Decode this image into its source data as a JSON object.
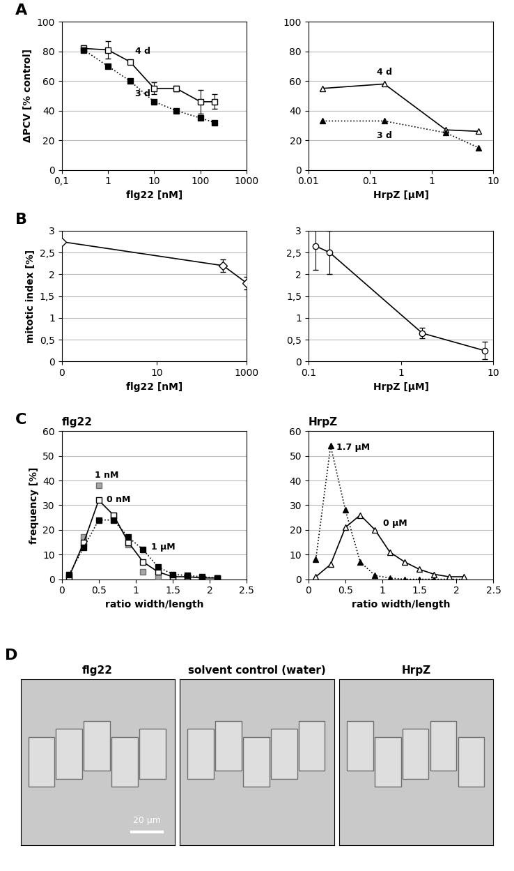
{
  "chart_data": [
    {
      "type": "line",
      "panel": "A",
      "xlabel": "flg22 [nM]",
      "ylabel": "ΔPCV [% control]",
      "log": "x",
      "grid": true,
      "xlim": [
        0.1,
        1000
      ],
      "xticks": [
        {
          "value": 0.1,
          "label": "0,1"
        },
        1,
        10,
        100,
        1000
      ],
      "ylim": [
        0,
        100
      ],
      "yticks": [
        0,
        20,
        40,
        60,
        80,
        100
      ],
      "series": [
        {
          "name": "4 d",
          "color": "#ffffff",
          "marker": "square",
          "line_style": "solid",
          "x": [
            0.3,
            1,
            3,
            10,
            30,
            100,
            200
          ],
          "values": [
            82,
            81,
            73,
            55,
            55,
            46,
            46
          ],
          "errors": [
            2,
            6,
            1,
            4,
            2,
            8,
            5
          ]
        },
        {
          "name": "3 d",
          "color": "#000000",
          "marker": "square",
          "line_style": "dotted",
          "x": [
            0.3,
            1,
            3,
            10,
            30,
            100,
            200
          ],
          "values": [
            81,
            70,
            60,
            46,
            40,
            35,
            32
          ]
        }
      ]
    },
    {
      "type": "line",
      "xlabel": "HrpZ [µM]",
      "log": "x",
      "grid": true,
      "xlim": [
        0.01,
        10
      ],
      "xticks": [
        0.01,
        0.1,
        1,
        10
      ],
      "ylim": [
        0,
        100
      ],
      "yticks": [
        0,
        20,
        40,
        60,
        80,
        100
      ],
      "series": [
        {
          "name": "4 d",
          "color": "#ffffff",
          "marker": "triangle",
          "line_style": "solid",
          "x": [
            0.017,
            0.17,
            1.7,
            5.7
          ],
          "values": [
            55,
            58,
            27,
            26
          ]
        },
        {
          "name": "3 d",
          "color": "#000000",
          "marker": "triangle",
          "line_style": "dotted",
          "x": [
            0.017,
            0.17,
            1.7,
            5.7
          ],
          "values": [
            33,
            33,
            25,
            15
          ]
        }
      ]
    },
    {
      "type": "line",
      "panel": "B",
      "xlabel": "flg22 [nM]",
      "ylabel": "mitotic index [%]",
      "log": "x",
      "grid": true,
      "xlim": [
        0,
        1000
      ],
      "xticks": [
        0,
        10,
        1000
      ],
      "ylim": [
        0,
        3
      ],
      "yticks": [
        0,
        {
          "value": 0.5,
          "label": "0,5"
        },
        1,
        {
          "value": 1.5,
          "label": "1,5"
        },
        2,
        {
          "value": 2.5,
          "label": "2,5"
        },
        3
      ],
      "series": [
        {
          "color": "#ffffff",
          "marker": "diamond",
          "line_style": "solid",
          "x": [
            0,
            300,
            1000
          ],
          "values": [
            2.75,
            2.2,
            1.8
          ],
          "errors": [
            0,
            0.15,
            0.15
          ]
        }
      ]
    },
    {
      "type": "line",
      "xlabel": "HrpZ [µM]",
      "log": "x",
      "grid": true,
      "xlim": [
        0.1,
        10
      ],
      "xticks": [
        0.1,
        1,
        10
      ],
      "ylim": [
        0,
        3
      ],
      "yticks": [
        0,
        {
          "value": 0.5,
          "label": "0,5"
        },
        1,
        {
          "value": 1.5,
          "label": "1,5"
        },
        2,
        {
          "value": 2.5,
          "label": "2,5"
        },
        3
      ],
      "series": [
        {
          "color": "#ffffff",
          "marker": "circle",
          "line_style": "solid",
          "x": [
            0.12,
            0.17,
            1.7,
            8
          ],
          "values": [
            2.65,
            2.5,
            0.65,
            0.25
          ],
          "errors": [
            0.55,
            0.5,
            0.12,
            0.2
          ]
        }
      ]
    },
    {
      "type": "line",
      "panel": "C",
      "title": "flg22",
      "xlabel": "ratio width/length",
      "ylabel": "frequency [%]",
      "grid": true,
      "xlim": [
        0,
        2.5
      ],
      "xticks": [
        0,
        0.5,
        1,
        1.5,
        2,
        2.5
      ],
      "ylim": [
        0,
        60
      ],
      "yticks": [
        0,
        10,
        20,
        30,
        40,
        50,
        60
      ],
      "series": [
        {
          "name": "1 nM",
          "color": "#a6a6a6",
          "marker": "square",
          "line_style": "none",
          "x": [
            0.1,
            0.3,
            0.5,
            0.7,
            0.9,
            1.1,
            1.3,
            1.5,
            1.7,
            1.9,
            2.1
          ],
          "values": [
            0,
            17,
            38,
            26,
            14,
            3,
            1,
            0.5,
            0.5,
            0.5,
            0.5
          ]
        },
        {
          "name": "0 nM",
          "color": "#ffffff",
          "marker": "square",
          "line_style": "solid",
          "x": [
            0.1,
            0.3,
            0.5,
            0.7,
            0.9,
            1.1,
            1.3,
            1.5,
            1.7,
            1.9,
            2.1
          ],
          "values": [
            1,
            15,
            32,
            26,
            15,
            7,
            3,
            1,
            1,
            0.5,
            0.5
          ]
        },
        {
          "name": "1 µM",
          "color": "#000000",
          "marker": "square",
          "line_style": "dotted",
          "x": [
            0.1,
            0.3,
            0.5,
            0.7,
            0.9,
            1.1,
            1.3,
            1.5,
            1.7,
            1.9,
            2.1
          ],
          "values": [
            2,
            13,
            24,
            24,
            17,
            12,
            5,
            2,
            1.5,
            1,
            0.5
          ]
        }
      ]
    },
    {
      "type": "line",
      "title": "HrpZ",
      "xlabel": "ratio width/length",
      "grid": true,
      "xlim": [
        0,
        2.5
      ],
      "xticks": [
        0,
        0.5,
        1,
        1.5,
        2,
        2.5
      ],
      "ylim": [
        0,
        60
      ],
      "yticks": [
        0,
        10,
        20,
        30,
        40,
        50,
        60
      ],
      "series": [
        {
          "name": "1.7 µM",
          "color": "#000000",
          "marker": "triangle",
          "line_style": "dotted",
          "x": [
            0.1,
            0.3,
            0.5,
            0.7,
            0.9,
            1.1,
            1.3,
            1.5,
            1.7,
            1.9,
            2.1
          ],
          "values": [
            8,
            54,
            28,
            7,
            1.5,
            0.5,
            0,
            0,
            0,
            0,
            0
          ]
        },
        {
          "name": "0 µM",
          "color": "#ffffff",
          "marker": "triangle",
          "line_style": "solid",
          "x": [
            0.1,
            0.3,
            0.5,
            0.7,
            0.9,
            1.1,
            1.3,
            1.5,
            1.7,
            1.9,
            2.1
          ],
          "values": [
            1,
            6,
            21,
            26,
            20,
            11,
            7,
            4,
            2,
            1,
            1
          ]
        }
      ]
    }
  ],
  "panel_D": {
    "panel": "D",
    "images": [
      "flg22",
      "solvent control (water)",
      "HrpZ"
    ],
    "scale_bar": "20 µm"
  }
}
